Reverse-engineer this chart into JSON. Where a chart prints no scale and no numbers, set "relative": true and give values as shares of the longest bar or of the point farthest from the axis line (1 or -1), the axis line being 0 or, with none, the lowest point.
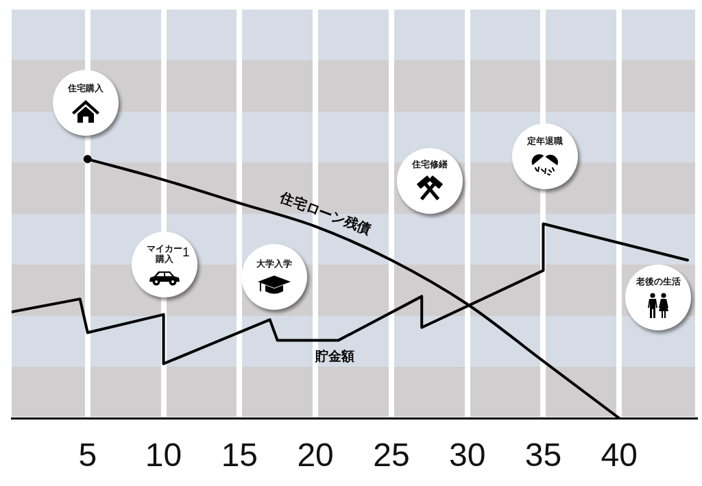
{
  "chart_data": {
    "type": "line",
    "relative": true,
    "xlim": [
      0,
      45
    ],
    "xticks": [
      5,
      10,
      15,
      20,
      25,
      30,
      35,
      40
    ],
    "grid": "x",
    "legend": false,
    "series": [
      {
        "name": "住宅ローン残債",
        "color": "#000000",
        "x": [
          5,
          10,
          15,
          20,
          25,
          30,
          35,
          40
        ],
        "values": [
          1,
          0.92,
          0.83,
          0.74,
          0.61,
          0.44,
          0.22,
          0
        ]
      },
      {
        "name": "貯金額",
        "color": "#000000",
        "x": [
          0,
          4.5,
          5,
          10,
          10,
          17,
          17.5,
          21.5,
          27,
          27,
          35,
          35,
          44.5
        ],
        "values": [
          0.41,
          0.46,
          0.33,
          0.4,
          0.21,
          0.38,
          0.3,
          0.3,
          0.47,
          0.35,
          0.57,
          0.75,
          0.61
        ]
      },
      {
        "type": "scatter",
        "color": "#000000",
        "marker": "circle",
        "x": [
          5
        ],
        "values": [
          1
        ]
      }
    ],
    "annotations": [
      "住宅購入",
      "マイカー購入",
      "大学入学",
      "住宅修繕",
      "定年退職",
      "老後の生活",
      "1"
    ]
  }
}
